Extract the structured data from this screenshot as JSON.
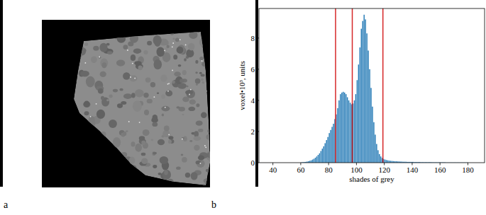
{
  "chart_data": {
    "type": "histogram",
    "x_label": "shades of grey",
    "y_label": "voxel•10³, units",
    "color": "#1f77b4",
    "bins": [
      60,
      61,
      62,
      63,
      64,
      65,
      66,
      67,
      68,
      69,
      70,
      71,
      72,
      73,
      74,
      75,
      76,
      77,
      78,
      79,
      80,
      81,
      82,
      83,
      84,
      85,
      86,
      87,
      88,
      89,
      90,
      91,
      92,
      93,
      94,
      95,
      96,
      97,
      98,
      99,
      100,
      101,
      102,
      103,
      104,
      105,
      106,
      107,
      108,
      109,
      110,
      111,
      112,
      113,
      114,
      115,
      116,
      117,
      118,
      119,
      120,
      121,
      122,
      123,
      124,
      125,
      126,
      127,
      128,
      129,
      130,
      131,
      132,
      133,
      134,
      135,
      136,
      137,
      138,
      139,
      140,
      141,
      142,
      143,
      144,
      145,
      146,
      147,
      148,
      149,
      150,
      151,
      152,
      153,
      154,
      155,
      156,
      157,
      158,
      159,
      160,
      161,
      162,
      163,
      164,
      165,
      166,
      167,
      168,
      169,
      170,
      171,
      172,
      173,
      174,
      175,
      176,
      177,
      178,
      179,
      180
    ],
    "values": [
      0.02,
      0.03,
      0.04,
      0.05,
      0.07,
      0.09,
      0.12,
      0.15,
      0.2,
      0.25,
      0.32,
      0.4,
      0.5,
      0.6,
      0.75,
      0.9,
      1.05,
      1.25,
      1.45,
      1.65,
      1.9,
      2.1,
      2.3,
      2.5,
      2.8,
      3.1,
      3.5,
      4.0,
      4.4,
      4.5,
      4.55,
      4.5,
      4.4,
      4.2,
      4.0,
      3.85,
      3.75,
      3.8,
      4.0,
      4.4,
      5.3,
      6.3,
      7.4,
      8.6,
      9.1,
      9.5,
      9.2,
      8.3,
      7.2,
      6.0,
      4.8,
      3.6,
      2.6,
      1.8,
      1.2,
      0.8,
      0.55,
      0.4,
      0.3,
      0.24,
      0.2,
      0.17,
      0.15,
      0.13,
      0.12,
      0.11,
      0.1,
      0.09,
      0.09,
      0.08,
      0.08,
      0.07,
      0.07,
      0.06,
      0.06,
      0.06,
      0.05,
      0.05,
      0.05,
      0.05,
      0.05,
      0.04,
      0.04,
      0.04,
      0.04,
      0.04,
      0.03,
      0.03,
      0.03,
      0.03,
      0.03,
      0.03,
      0.03,
      0.03,
      0.02,
      0.02,
      0.02,
      0.02,
      0.02,
      0.02,
      0.02,
      0.02,
      0.02,
      0.02,
      0.01,
      0.01,
      0.01,
      0.01,
      0.01,
      0.01,
      0.01,
      0.01,
      0.01,
      0.01,
      0.01,
      0.01,
      0.01,
      0.01,
      0.01,
      0.01
    ],
    "xlim": [
      30,
      192
    ],
    "ylim": [
      0,
      9.9
    ],
    "xticks": [
      40,
      60,
      80,
      100,
      120,
      140,
      160,
      180
    ],
    "yticks": [
      0,
      2,
      4,
      6,
      8
    ],
    "grid": false,
    "vlines": {
      "values": [
        85,
        97,
        119
      ],
      "color": "#d62728"
    }
  },
  "panel_labels": [
    "a",
    "b"
  ]
}
